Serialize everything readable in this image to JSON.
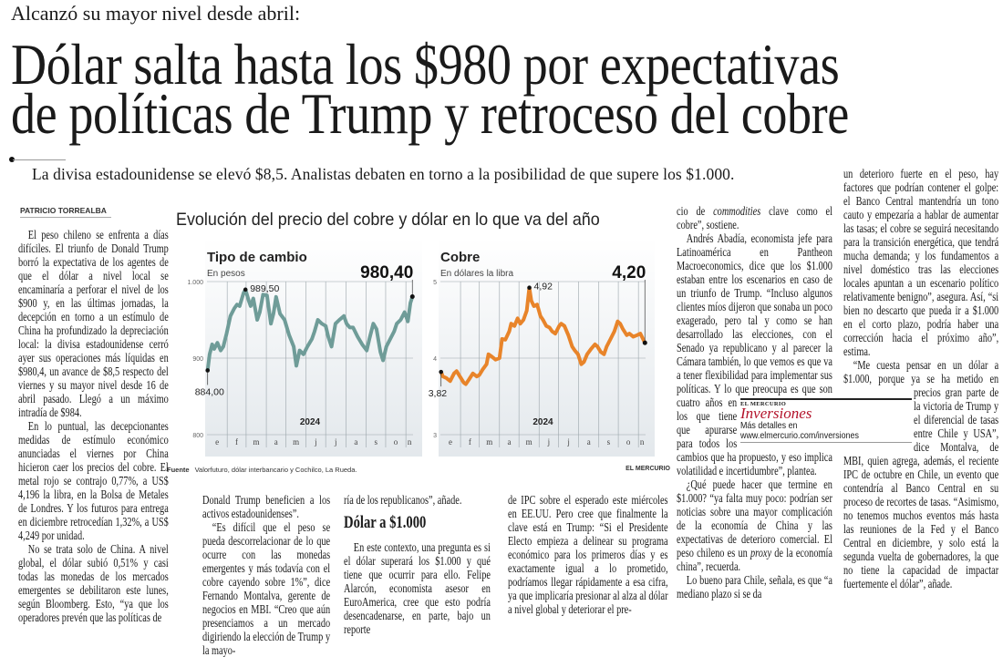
{
  "header": {
    "kicker": "Alcanzó su mayor nivel desde abril:",
    "headline_line1": "Dólar salta hasta los $980 por expectativas",
    "headline_line2": "de políticas de Trump y retroceso del cobre",
    "subhead": "La divisa estadounidense se elevó $8,5. Analistas debaten en torno a la posibilidad de que supere los $1.000."
  },
  "byline": "PATRICIO TORREALBA",
  "columns": {
    "col1": [
      "El peso chileno se enfrenta a días difíciles. El triunfo de Donald Trump borró la expectativa de los agentes de que el dólar a nivel local se encaminaría a perforar el nivel de los $900 y, en las últimas jornadas, la decepción en torno a un estímulo de China ha profundizado la depreciación local: la divisa estadounidense cerró ayer sus operaciones más líquidas en $980,4, un avance de $8,5 respecto del viernes y su mayor nivel desde 16 de abril pasado. Llegó a un máximo intradía de $984.",
      "En lo puntual, las decepcionantes medidas de estímulo económico anunciadas el viernes por China hicieron caer los precios del cobre. El metal rojo se contrajo 0,77%, a US$ 4,196 la libra, en la Bolsa de Metales de Londres. Y los futuros para entrega en diciembre retrocedían 1,32%, a US$ 4,249 por unidad.",
      "No se trata solo de China. A nivel global, el dólar subió 0,51% y casi todas las monedas de los mercados emergentes se debilitaron este lunes, según Bloomberg. Esto, “ya que los operadores prevén que las políticas de"
    ],
    "col2": [
      "Donald Trump beneficien a los activos estadounidenses”.",
      "“Es difícil que el peso se pueda descorrelacionar de lo que ocurre con las monedas emergentes y más todavía con el cobre cayendo sobre 1%”, dice Fernando Montalva, gerente de negocios en MBI. “Creo que aún presenciamos a un mercado digiriendo la elección de Trump y la mayo-"
    ],
    "col3_lead": "ría de los republicanos”, añade.",
    "col3_subtitle": "Dólar a $1.000",
    "col3": "En este contexto, una pregunta es si el dólar superará los $1.000 y qué tiene que ocurrir para ello. Felipe Alarcón, economista asesor en EuroAmerica, cree que esto podría desencadenarse, en parte, bajo un reporte",
    "col4": "de IPC sobre el esperado este miércoles en EE.UU. Pero cree que finalmente la clave está en Trump: “Si el Presidente Electo empieza a delinear su programa económico para los primeros días y es exactamente igual a lo prometido, podríamos llegar rápidamente a esa cifra, ya que implicaría presionar al alza al dólar a nivel global y deteriorar el pre-",
    "col5_a_pre": "cio de ",
    "col5_a_italic": "commodities",
    "col5_a_post": " clave como el cobre”, sostiene.",
    "col5_b": "Andrés Abadía, economista jefe para Latinoamérica en Pantheon Macroeconomics, dice que los $1.000 estaban entre los escenarios en caso de un triunfo de Trump. “Incluso algunos clientes míos dijeron que sonaba un poco exagerado, pero tal y como se han desarrollado las elecciones, con el Senado ya republicano y al parecer la Cámara también, lo que vemos es que va a tener flexibilidad para",
    "col5_narrow": "implementar sus políticas. Y lo que preocupa es que son cuatro años en los que tiene",
    "col5_c": "que apurarse para todos los cambios que ha propuesto, y eso implica volatilidad e incertidumbre”, plantea.",
    "col5_d_pre": "¿Qué puede hacer que termine en $1.000? “ya falta muy poco: podrían ser noticias sobre una mayor complicación de la economía de China y las expectativas de deterioro comercial. El peso chileno es un ",
    "col5_d_italic": "proxy",
    "col5_d_post": " de la economía china”, recuerda.",
    "col5_e": "Lo bueno para Chile, señala, es que “a mediano plazo si se da",
    "col6_a": "un deterioro fuerte en el peso, hay factores que podrían contener el golpe: el Banco Central mantendría un tono cauto y empezaría a hablar de aumentar las tasas; el cobre se seguirá necesitando para la transición energética, que tendrá mucha demanda; y los fundamentos a nivel doméstico tras las elecciones locales apuntan a un escenario político relativamente benigno”, asegura. Así, “si bien no descarto que pueda ir a $1.000 en el corto plazo, podría haber una corrección hacia el próximo año”, estima.",
    "col6_b": "“Me cuesta pensar en un dólar",
    "col6_narrow": "a $1.000, porque ya se ha metido en precios gran parte de la victoria de Trump y el",
    "col6_c": "diferencial de tasas entre Chile y USA”, dice Montalva, de MBI, quien agrega, además, el reciente IPC de octubre en Chile, un evento que contendría al Banco Central en su proceso de recortes de tasas. “Asimismo, no tenemos muchos eventos más hasta las reuniones de la Fed y el Banco Central en diciembre, y solo está la segunda vuelta de gobernadores, la que no tiene la capacidad de impactar fuertemente el dólar”, añade."
  },
  "promo": {
    "brand": "EL MERCURIO",
    "title": "Inversiones",
    "more": "Más detalles en",
    "url": "www.elmercurio.com/inversiones",
    "accent": "#b3122a"
  },
  "graphic": {
    "title": "Evolución del precio del cobre y dólar en lo que va del año",
    "source_label": "Fuente",
    "source_text": "Valorfuturo, dólar interbancario y Cochilco, La Rueda.",
    "credit": "EL MERCURIO"
  },
  "chart_data": [
    {
      "type": "line",
      "title": "Tipo de cambio",
      "subtitle": "En pesos",
      "year_label": "2024",
      "ylim": [
        800,
        1000
      ],
      "yticks": [
        "800",
        "900",
        "1.000"
      ],
      "ytick_values": [
        800,
        900,
        1000
      ],
      "xlim": [
        "2024-01-01",
        "2024-11-12"
      ],
      "month_labels": [
        "e",
        "f",
        "m",
        "a",
        "m",
        "j",
        "j",
        "a",
        "s",
        "o",
        "n"
      ],
      "grid": true,
      "color": "#6f9c98",
      "annotations": {
        "start": "884,00",
        "max": "989,50",
        "last": "980,40"
      },
      "x": [
        "2024-01-02",
        "2024-01-05",
        "2024-01-09",
        "2024-01-12",
        "2024-01-17",
        "2024-01-22",
        "2024-01-26",
        "2024-01-31",
        "2024-02-06",
        "2024-02-12",
        "2024-02-16",
        "2024-02-20",
        "2024-02-26",
        "2024-02-29",
        "2024-03-05",
        "2024-03-08",
        "2024-03-12",
        "2024-03-18",
        "2024-03-22",
        "2024-03-27",
        "2024-04-02",
        "2024-04-08",
        "2024-04-12",
        "2024-04-16",
        "2024-04-22",
        "2024-04-29",
        "2024-05-06",
        "2024-05-13",
        "2024-05-17",
        "2024-05-22",
        "2024-05-28",
        "2024-06-03",
        "2024-06-10",
        "2024-06-14",
        "2024-06-19",
        "2024-06-25",
        "2024-07-01",
        "2024-07-05",
        "2024-07-10",
        "2024-07-16",
        "2024-07-22",
        "2024-07-29",
        "2024-08-02",
        "2024-08-07",
        "2024-08-12",
        "2024-08-19",
        "2024-08-26",
        "2024-09-02",
        "2024-09-06",
        "2024-09-12",
        "2024-09-17",
        "2024-09-23",
        "2024-09-27",
        "2024-10-02",
        "2024-10-08",
        "2024-10-14",
        "2024-10-18",
        "2024-10-24",
        "2024-10-30",
        "2024-11-04",
        "2024-11-08",
        "2024-11-11"
      ],
      "y": [
        884,
        905,
        918,
        912,
        920,
        910,
        915,
        932,
        955,
        965,
        970,
        968,
        985,
        989.5,
        975,
        968,
        978,
        950,
        960,
        983,
        982,
        945,
        958,
        980,
        958,
        950,
        930,
        915,
        890,
        910,
        905,
        915,
        925,
        935,
        950,
        945,
        942,
        928,
        915,
        945,
        950,
        955,
        945,
        940,
        940,
        928,
        918,
        910,
        925,
        945,
        938,
        908,
        897,
        915,
        925,
        935,
        945,
        950,
        960,
        948,
        972,
        980.4
      ]
    },
    {
      "type": "line",
      "title": "Cobre",
      "subtitle": "En dólares la libra",
      "year_label": "2024",
      "ylim": [
        3,
        5
      ],
      "yticks": [
        "3",
        "4",
        "5"
      ],
      "ytick_values": [
        3,
        4,
        5
      ],
      "xlim": [
        "2024-01-01",
        "2024-11-12"
      ],
      "month_labels": [
        "e",
        "f",
        "m",
        "a",
        "m",
        "j",
        "j",
        "a",
        "s",
        "o",
        "n"
      ],
      "grid": true,
      "color": "#e8842a",
      "annotations": {
        "start": "3,82",
        "max": "4,92",
        "last": "4,20"
      },
      "x": [
        "2024-01-02",
        "2024-01-05",
        "2024-01-10",
        "2024-01-16",
        "2024-01-22",
        "2024-01-26",
        "2024-01-31",
        "2024-02-06",
        "2024-02-09",
        "2024-02-14",
        "2024-02-20",
        "2024-02-26",
        "2024-03-01",
        "2024-03-06",
        "2024-03-12",
        "2024-03-15",
        "2024-03-20",
        "2024-03-26",
        "2024-04-01",
        "2024-04-05",
        "2024-04-10",
        "2024-04-16",
        "2024-04-19",
        "2024-04-24",
        "2024-04-29",
        "2024-05-03",
        "2024-05-08",
        "2024-05-13",
        "2024-05-17",
        "2024-05-20",
        "2024-05-24",
        "2024-05-29",
        "2024-06-03",
        "2024-06-07",
        "2024-06-12",
        "2024-06-17",
        "2024-06-21",
        "2024-06-26",
        "2024-07-02",
        "2024-07-05",
        "2024-07-10",
        "2024-07-16",
        "2024-07-22",
        "2024-07-26",
        "2024-07-31",
        "2024-08-05",
        "2024-08-09",
        "2024-08-14",
        "2024-08-20",
        "2024-08-26",
        "2024-08-30",
        "2024-09-04",
        "2024-09-09",
        "2024-09-13",
        "2024-09-19",
        "2024-09-25",
        "2024-09-30",
        "2024-10-04",
        "2024-10-08",
        "2024-10-14",
        "2024-10-18",
        "2024-10-24",
        "2024-10-30",
        "2024-11-04",
        "2024-11-08",
        "2024-11-11"
      ],
      "y": [
        3.82,
        3.76,
        3.74,
        3.7,
        3.8,
        3.83,
        3.76,
        3.68,
        3.66,
        3.72,
        3.8,
        3.76,
        3.78,
        3.85,
        3.92,
        4.05,
        4.02,
        3.98,
        4.0,
        4.25,
        4.24,
        4.35,
        4.45,
        4.42,
        4.52,
        4.45,
        4.5,
        4.62,
        4.92,
        4.75,
        4.68,
        4.7,
        4.55,
        4.5,
        4.42,
        4.4,
        4.35,
        4.32,
        4.42,
        4.45,
        4.42,
        4.3,
        4.15,
        4.1,
        4.05,
        3.92,
        3.95,
        4.05,
        4.12,
        4.18,
        4.15,
        4.08,
        4.05,
        4.15,
        4.25,
        4.35,
        4.48,
        4.45,
        4.38,
        4.3,
        4.32,
        4.28,
        4.3,
        4.32,
        4.25,
        4.2
      ]
    }
  ]
}
